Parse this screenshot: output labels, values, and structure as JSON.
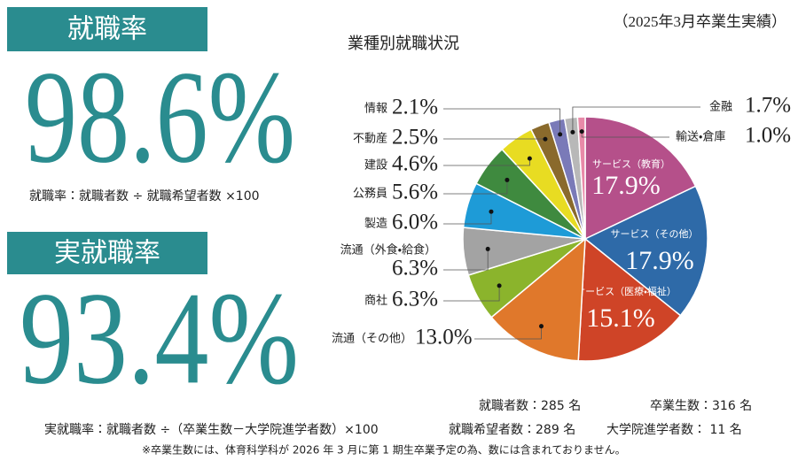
{
  "employment_rate": {
    "heading": "就職率",
    "value": "98.6%",
    "formula": "就職率：就職者数 ÷ 就職希望者数 ×100"
  },
  "real_employment_rate": {
    "heading": "実就職率",
    "value": "93.4%",
    "formula": "実就職率：就職者数 ÷（卒業生数－大学院進学者数）×100"
  },
  "stats": [
    {
      "label": "就職者数：",
      "value": 285,
      "unit": "名"
    },
    {
      "label": "卒業生数：",
      "value": 316,
      "unit": "名"
    },
    {
      "label": "就職希望者数：",
      "value": 289,
      "unit": "名"
    },
    {
      "label": "大学院進学者数：",
      "value": 11,
      "unit": "名"
    }
  ],
  "footnote": "※卒業生数には、体育科学科が 2026 年 3 月に第 1 期生卒業予定の為、数には含まれておりません。",
  "chart_data": {
    "type": "pie",
    "title": "業種別就職状況",
    "subtitle": "（2025年3月卒業生実績）",
    "categories": [
      "サービス（教育）",
      "サービス（その他）",
      "サービス（医療・福祉）",
      "流通（その他）",
      "商社",
      "流通（外食・給食）",
      "製造",
      "公務員",
      "建設",
      "不動産",
      "情報",
      "金融",
      "輸送・倉庫"
    ],
    "values": [
      17.9,
      17.9,
      15.1,
      13.0,
      6.3,
      6.3,
      6.0,
      5.6,
      4.6,
      2.5,
      2.1,
      1.7,
      1.0
    ],
    "value_labels": [
      "17.9%",
      "17.9%",
      "15.1%",
      "13.0%",
      "6.3%",
      "6.3%",
      "6.0%",
      "5.6%",
      "4.6%",
      "2.5%",
      "2.1%",
      "1.7%",
      "1.0%"
    ],
    "colors": [
      "#b5508a",
      "#2e6aa8",
      "#cf4427",
      "#e0782b",
      "#8bb42c",
      "#a3a3a3",
      "#1e9bd7",
      "#3f8a3f",
      "#e8dc22",
      "#8a6a2c",
      "#7a7ab8",
      "#b8b8b8",
      "#e88aa8"
    ]
  }
}
